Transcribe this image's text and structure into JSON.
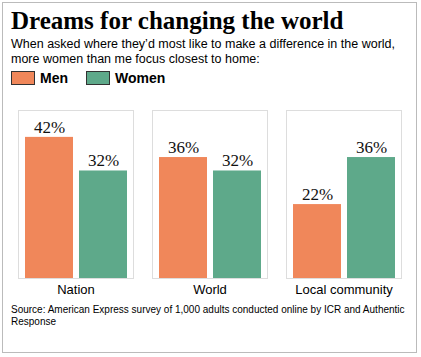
{
  "chart_data": {
    "type": "bar",
    "title": "Dreams for changing the world",
    "subtitle": "When asked where they’d most like to make a difference in the world, more women than me focus closest to home:",
    "categories": [
      "Nation",
      "World",
      "Local community"
    ],
    "series": [
      {
        "name": "Men",
        "color": "#f0875a",
        "values": [
          42,
          36,
          22
        ],
        "value_labels": [
          "42%",
          "36%",
          "22%"
        ]
      },
      {
        "name": "Women",
        "color": "#5ea98a",
        "values": [
          32,
          32,
          36
        ],
        "value_labels": [
          "32%",
          "32%",
          "36%"
        ]
      }
    ],
    "ylim": [
      0,
      50
    ],
    "data_labels": true,
    "tick_labels": "x",
    "legend": "top-left",
    "source": "Source: American Express survey of 1,000 adults conducted online by ICR and Authentic Response"
  }
}
